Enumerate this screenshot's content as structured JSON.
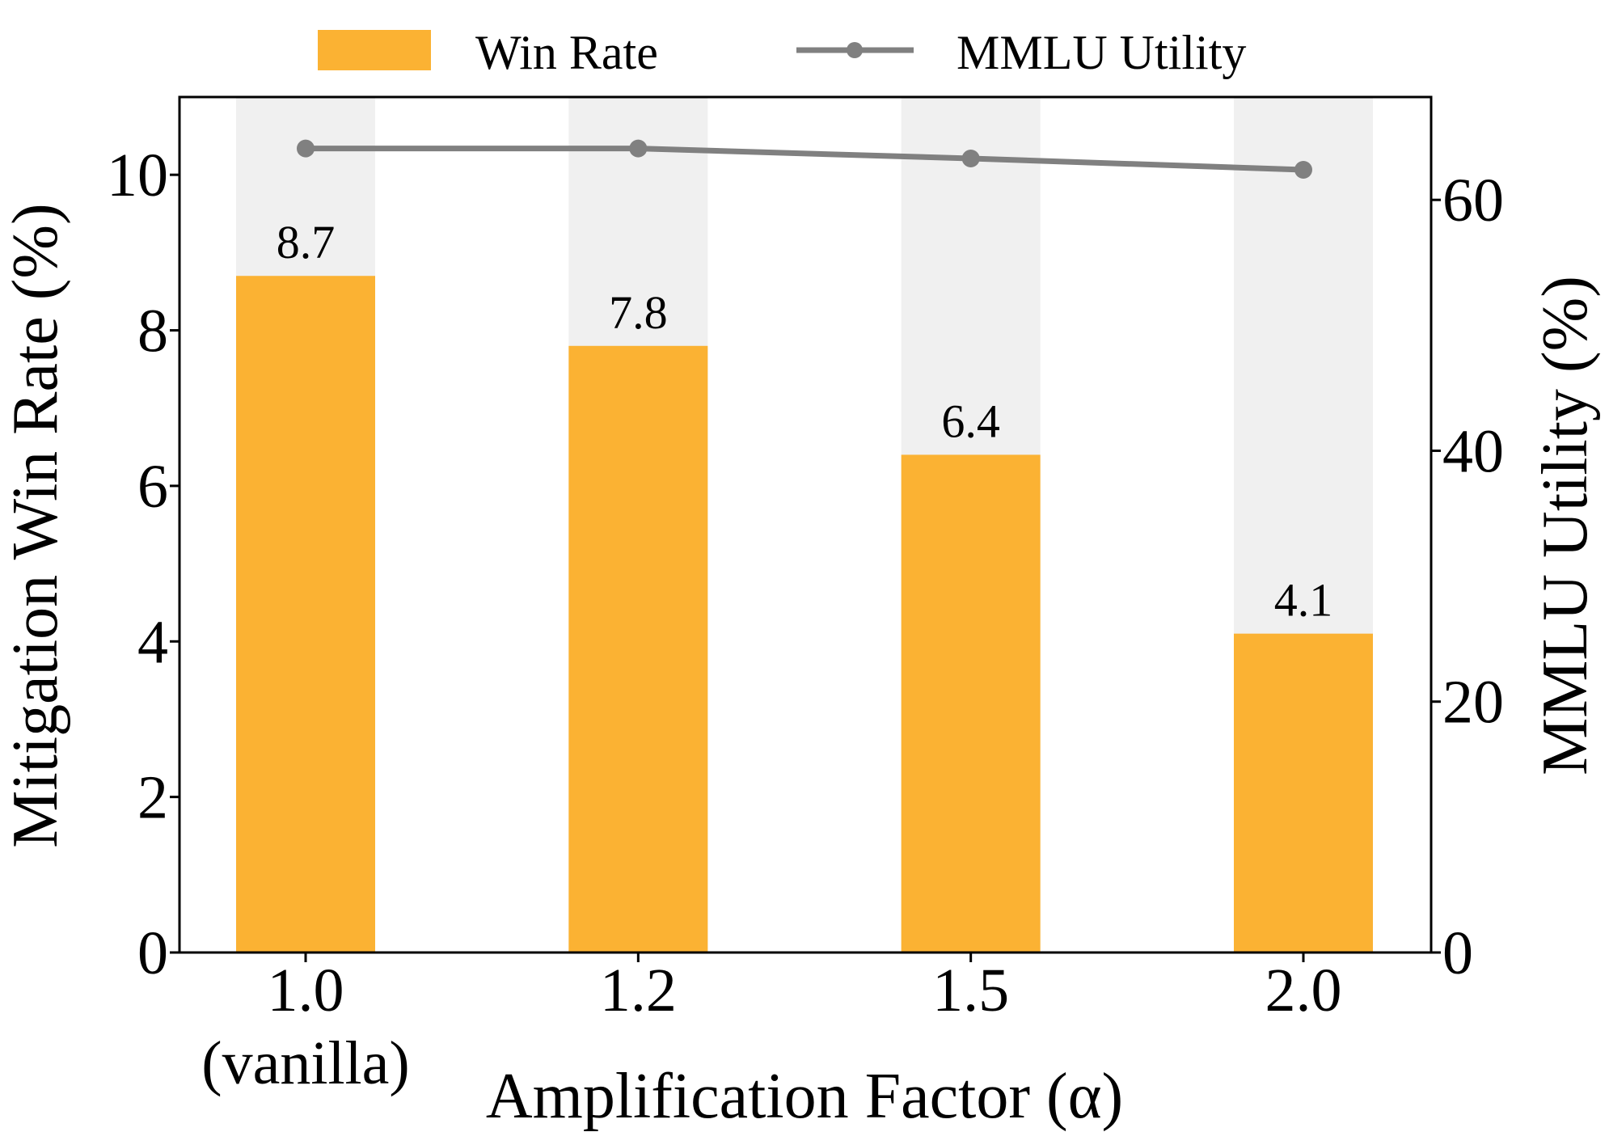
{
  "chart_data": {
    "type": "bar+line",
    "categories": [
      "1.0",
      "1.2",
      "1.5",
      "2.0"
    ],
    "category_sublabels": [
      "(vanilla)",
      "",
      "",
      ""
    ],
    "series": [
      {
        "name": "Win Rate",
        "type": "bar",
        "axis": "left",
        "color": "#FBB233",
        "values": [
          8.7,
          7.8,
          6.4,
          4.1
        ],
        "data_labels": [
          "8.7",
          "7.8",
          "6.4",
          "4.1"
        ]
      },
      {
        "name": "MMLU Utility",
        "type": "line",
        "axis": "right",
        "color": "#808080",
        "marker": "circle",
        "values": [
          64.1,
          64.1,
          63.3,
          62.4
        ]
      }
    ],
    "background_band_color": "#F0F0F0",
    "xlabel": "Amplification Factor (α)",
    "ylabel_left": "Mitigation Win Rate (%)",
    "ylabel_right": "MMLU Utility (%)",
    "ylim_left": [
      0,
      11
    ],
    "ylim_right": [
      0,
      68.2
    ],
    "yticks_left": [
      "0",
      "2",
      "4",
      "6",
      "8",
      "10"
    ],
    "yticks_right": [
      "0",
      "20",
      "40",
      "60"
    ],
    "legend": {
      "position": "top-center",
      "entries": [
        "Win Rate",
        "MMLU Utility"
      ]
    },
    "grid": false
  }
}
